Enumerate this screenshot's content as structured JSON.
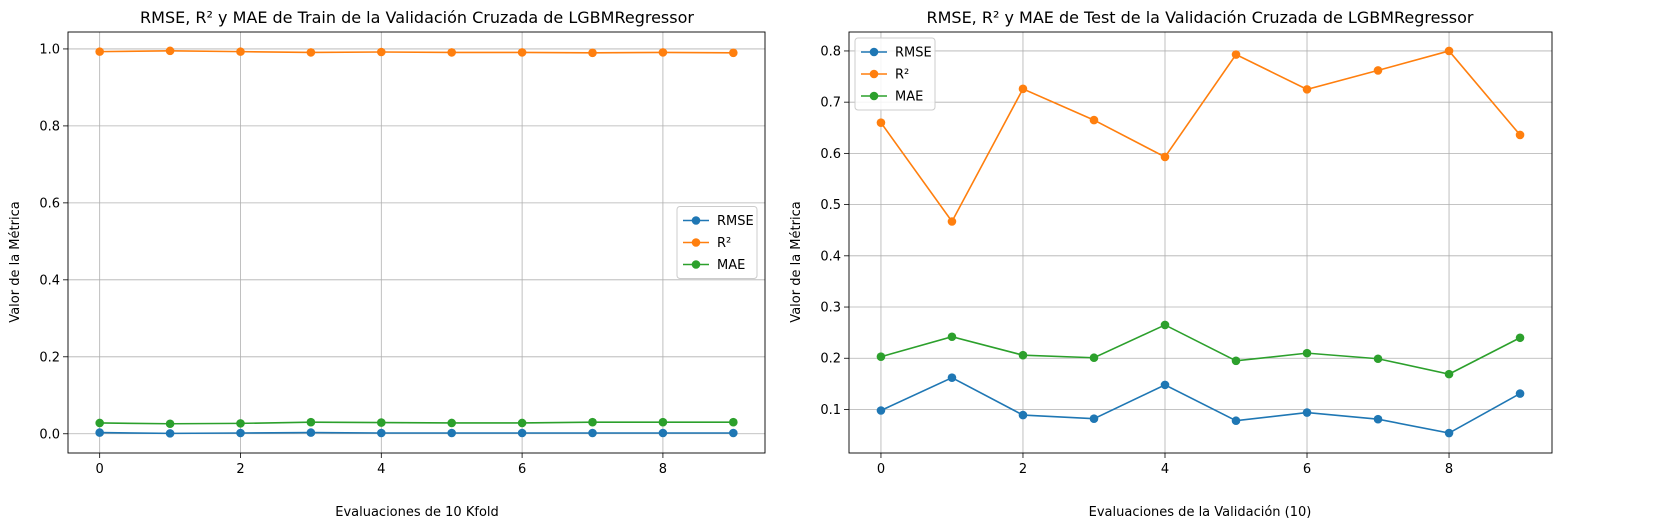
{
  "colors": {
    "RMSE": "#1f77b4",
    "R2": "#ff7f0e",
    "MAE": "#2ca02c",
    "grid": "#b0b0b0",
    "axis": "#000000"
  },
  "chart_data": [
    {
      "type": "line",
      "title": "RMSE, R² y MAE de Train de la Validación Cruzada de LGBMRegressor",
      "xlabel": "Evaluaciones de 10 Kfold",
      "ylabel": "Valor de la Métrica",
      "x": [
        0,
        1,
        2,
        3,
        4,
        5,
        6,
        7,
        8,
        9
      ],
      "xlim": [
        -0.45,
        9.45
      ],
      "ylim": [
        -0.05,
        1.044
      ],
      "xticks": [
        0,
        2,
        4,
        6,
        8
      ],
      "xtick_labels": [
        "0",
        "2",
        "4",
        "6",
        "8"
      ],
      "yticks": [
        0.0,
        0.2,
        0.4,
        0.6,
        0.8,
        1.0
      ],
      "ytick_labels": [
        "0.0",
        "0.2",
        "0.4",
        "0.6",
        "0.8",
        "1.0"
      ],
      "grid": true,
      "legend_position": "center-right",
      "series": [
        {
          "name": "RMSE",
          "color_key": "RMSE",
          "marker": "circle",
          "values": [
            0.003,
            0.001,
            0.002,
            0.003,
            0.002,
            0.002,
            0.002,
            0.002,
            0.002,
            0.002
          ]
        },
        {
          "name": "R²",
          "color_key": "R2",
          "marker": "circle",
          "values": [
            0.993,
            0.995,
            0.993,
            0.991,
            0.992,
            0.991,
            0.991,
            0.99,
            0.991,
            0.99
          ]
        },
        {
          "name": "MAE",
          "color_key": "MAE",
          "marker": "circle",
          "values": [
            0.028,
            0.026,
            0.027,
            0.03,
            0.029,
            0.028,
            0.028,
            0.03,
            0.03,
            0.03
          ]
        }
      ]
    },
    {
      "type": "line",
      "title": "RMSE, R² y MAE de Test de la Validación Cruzada de LGBMRegressor",
      "xlabel": "Evaluaciones de la Validación (10)",
      "ylabel": "Valor de la Métrica",
      "x": [
        0,
        1,
        2,
        3,
        4,
        5,
        6,
        7,
        8,
        9
      ],
      "xlim": [
        -0.45,
        9.45
      ],
      "ylim": [
        0.015,
        0.837
      ],
      "xticks": [
        0,
        2,
        4,
        6,
        8
      ],
      "xtick_labels": [
        "0",
        "2",
        "4",
        "6",
        "8"
      ],
      "yticks": [
        0.1,
        0.2,
        0.3,
        0.4,
        0.5,
        0.6,
        0.7,
        0.8
      ],
      "ytick_labels": [
        "0.1",
        "0.2",
        "0.3",
        "0.4",
        "0.5",
        "0.6",
        "0.7",
        "0.8"
      ],
      "grid": true,
      "legend_position": "upper-left",
      "series": [
        {
          "name": "RMSE",
          "color_key": "RMSE",
          "marker": "circle",
          "values": [
            0.098,
            0.162,
            0.089,
            0.082,
            0.148,
            0.078,
            0.094,
            0.081,
            0.054,
            0.131
          ]
        },
        {
          "name": "R²",
          "color_key": "R2",
          "marker": "circle",
          "values": [
            0.66,
            0.467,
            0.726,
            0.665,
            0.593,
            0.793,
            0.725,
            0.762,
            0.8,
            0.636
          ]
        },
        {
          "name": "MAE",
          "color_key": "MAE",
          "marker": "circle",
          "values": [
            0.203,
            0.242,
            0.206,
            0.201,
            0.265,
            0.195,
            0.21,
            0.199,
            0.169,
            0.24
          ]
        }
      ]
    }
  ]
}
